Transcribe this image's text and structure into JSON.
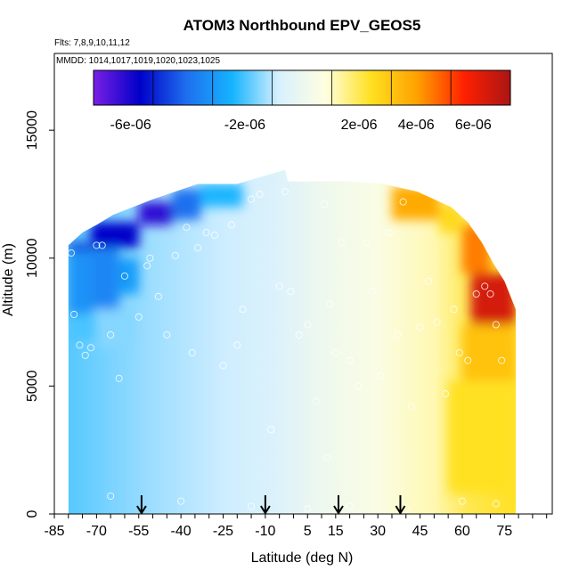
{
  "chart_data": {
    "type": "heatmap",
    "title": "ATOM3 Northbound EPV_GEOS5",
    "subtitle_flights": "Flts: 7,8,9,10,11,12",
    "subtitle_dates": "MMDD: 1014,1017,1019,1020,1023,1025",
    "xlabel": "Latitude (deg N)",
    "ylabel": "Altitude (m)",
    "xlim": [
      -85,
      92
    ],
    "ylim": [
      0,
      18000
    ],
    "x_ticks": [
      -85,
      -70,
      -55,
      -40,
      -25,
      -10,
      5,
      15,
      30,
      45,
      60,
      75
    ],
    "y_ticks": [
      0,
      5000,
      10000,
      15000
    ],
    "colorbar": {
      "range": [
        -7.3e-06,
        7.3e-06
      ],
      "tick_values": [
        -6e-06,
        -2e-06,
        2e-06,
        4e-06,
        6e-06
      ],
      "tick_labels": [
        "-6e-06",
        "-2e-06",
        "2e-06",
        "4e-06",
        "6e-06"
      ],
      "colors": [
        "#7a1fe6",
        "#0000c8",
        "#1e6eee",
        "#16b4ff",
        "#d8f0ff",
        "#ffffe0",
        "#ffe020",
        "#ffa000",
        "#ff2000",
        "#aa1515"
      ]
    },
    "arrow_latitudes": [
      -54,
      -10,
      16,
      38
    ],
    "envelope_top": [
      [
        -80,
        10500
      ],
      [
        -75,
        11000
      ],
      [
        -70,
        11300
      ],
      [
        -64,
        11700
      ],
      [
        -57,
        12000
      ],
      [
        -50,
        12300
      ],
      [
        -42,
        12600
      ],
      [
        -34,
        12900
      ],
      [
        -20,
        12900
      ],
      [
        -3,
        13450
      ],
      [
        -2,
        13000
      ],
      [
        20,
        13000
      ],
      [
        32,
        12900
      ],
      [
        44,
        12600
      ],
      [
        56,
        12000
      ],
      [
        62,
        11400
      ],
      [
        67,
        10600
      ],
      [
        71,
        9800
      ],
      [
        75,
        9100
      ],
      [
        79,
        8000
      ]
    ],
    "envelope_bottom": [
      [
        -80,
        0
      ],
      [
        79,
        0
      ]
    ],
    "regions": [
      {
        "lon0": -80,
        "lon1": -72,
        "alt0": 7800,
        "alt1": 10300,
        "value": -3.2e-06
      },
      {
        "lon0": -72,
        "lon1": -62,
        "alt0": 8000,
        "alt1": 10400,
        "value": -3.5e-06
      },
      {
        "lon0": -62,
        "lon1": -55,
        "alt0": 8600,
        "alt1": 10000,
        "value": -3e-06
      },
      {
        "lon0": -80,
        "lon1": -72,
        "alt0": 10300,
        "alt1": 10600,
        "value": -5.2e-06
      },
      {
        "lon0": -72,
        "lon1": -55,
        "alt0": 10400,
        "alt1": 11400,
        "value": -5.6e-06
      },
      {
        "lon0": -55,
        "lon1": -43,
        "alt0": 11300,
        "alt1": 12200,
        "value": -6.3e-06
      },
      {
        "lon0": -43,
        "lon1": -33,
        "alt0": 11500,
        "alt1": 12700,
        "value": -4e-06
      },
      {
        "lon0": -33,
        "lon1": -18,
        "alt0": 12000,
        "alt1": 12900,
        "value": -2.4e-06
      },
      {
        "lon0": -80,
        "lon1": -70,
        "alt0": 6800,
        "alt1": 7800,
        "value": -2e-06
      },
      {
        "lon0": -70,
        "lon1": -57,
        "alt0": 6500,
        "alt1": 8000,
        "value": -1.5e-06
      },
      {
        "lon0": 35,
        "lon1": 52,
        "alt0": 11500,
        "alt1": 12800,
        "value": 3.8e-06
      },
      {
        "lon0": 52,
        "lon1": 60,
        "alt0": 11000,
        "alt1": 12100,
        "value": 2.6e-06
      },
      {
        "lon0": 60,
        "lon1": 70,
        "alt0": 9400,
        "alt1": 11300,
        "value": 4.5e-06
      },
      {
        "lon0": 63,
        "lon1": 79,
        "alt0": 7400,
        "alt1": 9400,
        "value": 6.5e-06
      },
      {
        "lon0": 60,
        "lon1": 79,
        "alt0": 5200,
        "alt1": 7400,
        "value": 3.2e-06
      },
      {
        "lon0": 55,
        "lon1": 78,
        "alt0": 800,
        "alt1": 5200,
        "value": 2.4e-06
      }
    ],
    "sample_points": [
      [
        -79,
        10200
      ],
      [
        -78,
        7800
      ],
      [
        -76,
        6600
      ],
      [
        -74,
        6200
      ],
      [
        -72,
        6500
      ],
      [
        -70,
        10500
      ],
      [
        -68,
        10500
      ],
      [
        -65,
        7000
      ],
      [
        -62,
        5300
      ],
      [
        -55,
        7700
      ],
      [
        -52,
        9700
      ],
      [
        -51,
        10000
      ],
      [
        -45,
        7000
      ],
      [
        -42,
        10100
      ],
      [
        -38,
        11200
      ],
      [
        -36,
        6300
      ],
      [
        -34,
        10400
      ],
      [
        -31,
        11000
      ],
      [
        -28,
        10900
      ],
      [
        -25,
        5800
      ],
      [
        -22,
        11300
      ],
      [
        -20,
        6600
      ],
      [
        -18,
        8000
      ],
      [
        -15,
        12300
      ],
      [
        -12,
        12500
      ],
      [
        -5,
        8900
      ],
      [
        -3,
        12600
      ],
      [
        -1,
        8700
      ],
      [
        2,
        7000
      ],
      [
        5,
        7400
      ],
      [
        8,
        4400
      ],
      [
        11,
        12100
      ],
      [
        13,
        8200
      ],
      [
        15,
        6300
      ],
      [
        17,
        10600
      ],
      [
        20,
        6000
      ],
      [
        23,
        5000
      ],
      [
        26,
        10600
      ],
      [
        28,
        8700
      ],
      [
        31,
        5400
      ],
      [
        34,
        11000
      ],
      [
        37,
        7000
      ],
      [
        39,
        12200
      ],
      [
        42,
        4200
      ],
      [
        45,
        7300
      ],
      [
        48,
        9100
      ],
      [
        51,
        7500
      ],
      [
        54,
        4700
      ],
      [
        57,
        8000
      ],
      [
        59,
        6300
      ],
      [
        62,
        6000
      ],
      [
        65,
        8600
      ],
      [
        68,
        8900
      ],
      [
        70,
        8600
      ],
      [
        72,
        7400
      ],
      [
        74,
        6000
      ],
      [
        -60,
        9300
      ],
      [
        -48,
        8500
      ],
      [
        -8,
        3300
      ],
      [
        12,
        2200
      ],
      [
        -65,
        700
      ],
      [
        -40,
        500
      ],
      [
        -15,
        300
      ],
      [
        5,
        200
      ],
      [
        20,
        300
      ],
      [
        40,
        200
      ],
      [
        60,
        500
      ],
      [
        72,
        400
      ]
    ]
  }
}
